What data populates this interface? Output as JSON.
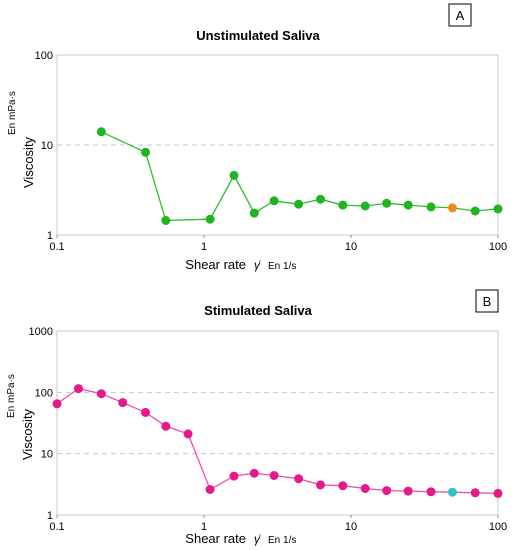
{
  "chart_data": [
    {
      "type": "line",
      "panel_label": "A",
      "title": "Unstimulated Saliva",
      "xlabel": "Shear rate",
      "xlabel_symbol": "γ̇",
      "xlabel_unit": "En 1/s",
      "ylabel": "Viscosity",
      "ylabel_unit": "En mPa·s",
      "xscale": "log",
      "yscale": "log",
      "xlim": [
        0.1,
        100
      ],
      "ylim": [
        1,
        100
      ],
      "xticks": [
        "0.1",
        "1",
        "10",
        "100"
      ],
      "yticks": [
        "1",
        "10",
        "100"
      ],
      "grid": "horizontal dashed",
      "line_color": "#2bbd2b",
      "marker_color": "#1fb51f",
      "highlight_color": "#f08a1f",
      "series": [
        {
          "x": [
            0.2,
            0.4,
            0.55,
            1.1,
            1.6,
            2.2,
            3.0,
            4.4,
            6.2,
            8.8,
            12.5,
            17.5,
            24.5,
            35,
            49,
            70,
            100
          ],
          "y": [
            14,
            8.3,
            1.45,
            1.5,
            4.6,
            1.75,
            2.4,
            2.2,
            2.5,
            2.15,
            2.1,
            2.25,
            2.15,
            2.05,
            2.0,
            1.85,
            1.95
          ],
          "highlight_index": 14
        }
      ]
    },
    {
      "type": "line",
      "panel_label": "B",
      "title": "Stimulated Saliva",
      "xlabel": "Shear rate",
      "xlabel_symbol": "γ̇",
      "xlabel_unit": "En 1/s",
      "ylabel": "Viscosity",
      "ylabel_unit": "En mPa·s",
      "xscale": "log",
      "yscale": "log",
      "xlim": [
        0.1,
        100
      ],
      "ylim": [
        1,
        1000
      ],
      "xticks": [
        "0.1",
        "1",
        "10",
        "100"
      ],
      "yticks": [
        "1",
        "10",
        "100",
        "1000"
      ],
      "grid": "horizontal dashed",
      "line_color": "#ee4fa8",
      "marker_color": "#e6198c",
      "highlight_color": "#33c2c8",
      "series": [
        {
          "x": [
            0.1,
            0.14,
            0.2,
            0.28,
            0.4,
            0.55,
            0.78,
            1.1,
            1.6,
            2.2,
            3.0,
            4.4,
            6.2,
            8.8,
            12.5,
            17.5,
            24.5,
            35,
            49,
            70,
            100
          ],
          "y": [
            65,
            115,
            95,
            68,
            47,
            28,
            21,
            2.6,
            4.3,
            4.8,
            4.4,
            3.9,
            3.1,
            3.0,
            2.7,
            2.5,
            2.45,
            2.4,
            2.35,
            2.3,
            2.25
          ],
          "highlight_index": 18
        }
      ]
    }
  ]
}
